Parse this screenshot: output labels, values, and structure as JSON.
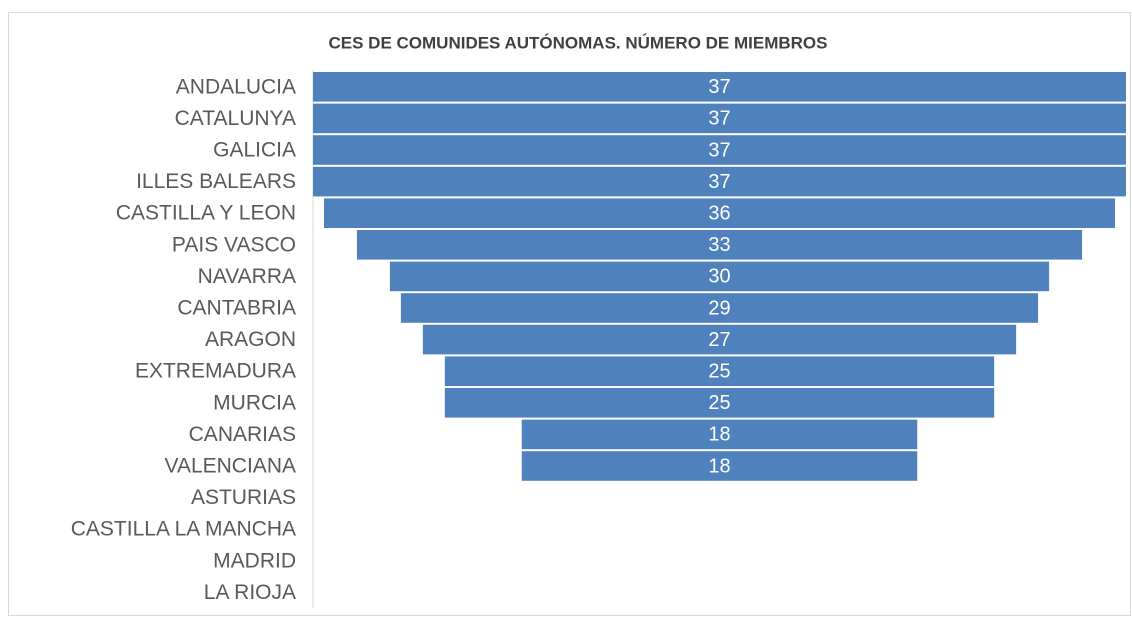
{
  "chart_data": {
    "type": "funnel",
    "title": "CES DE COMUNIDES AUTÓNOMAS. NÚMERO DE MIEMBROS",
    "categories": [
      "ANDALUCIA",
      "CATALUNYA",
      "GALICIA",
      "ILLES BALEARS",
      "CASTILLA Y LEON",
      "PAIS VASCO",
      "NAVARRA",
      "CANTABRIA",
      "ARAGON",
      "EXTREMADURA",
      "MURCIA",
      "CANARIAS",
      "VALENCIANA",
      "ASTURIAS",
      "CASTILLA LA MANCHA",
      "MADRID",
      "LA RIOJA"
    ],
    "values": [
      37,
      37,
      37,
      37,
      36,
      33,
      30,
      29,
      27,
      25,
      25,
      18,
      18,
      null,
      null,
      null,
      null
    ],
    "color": "#4f81bd"
  }
}
